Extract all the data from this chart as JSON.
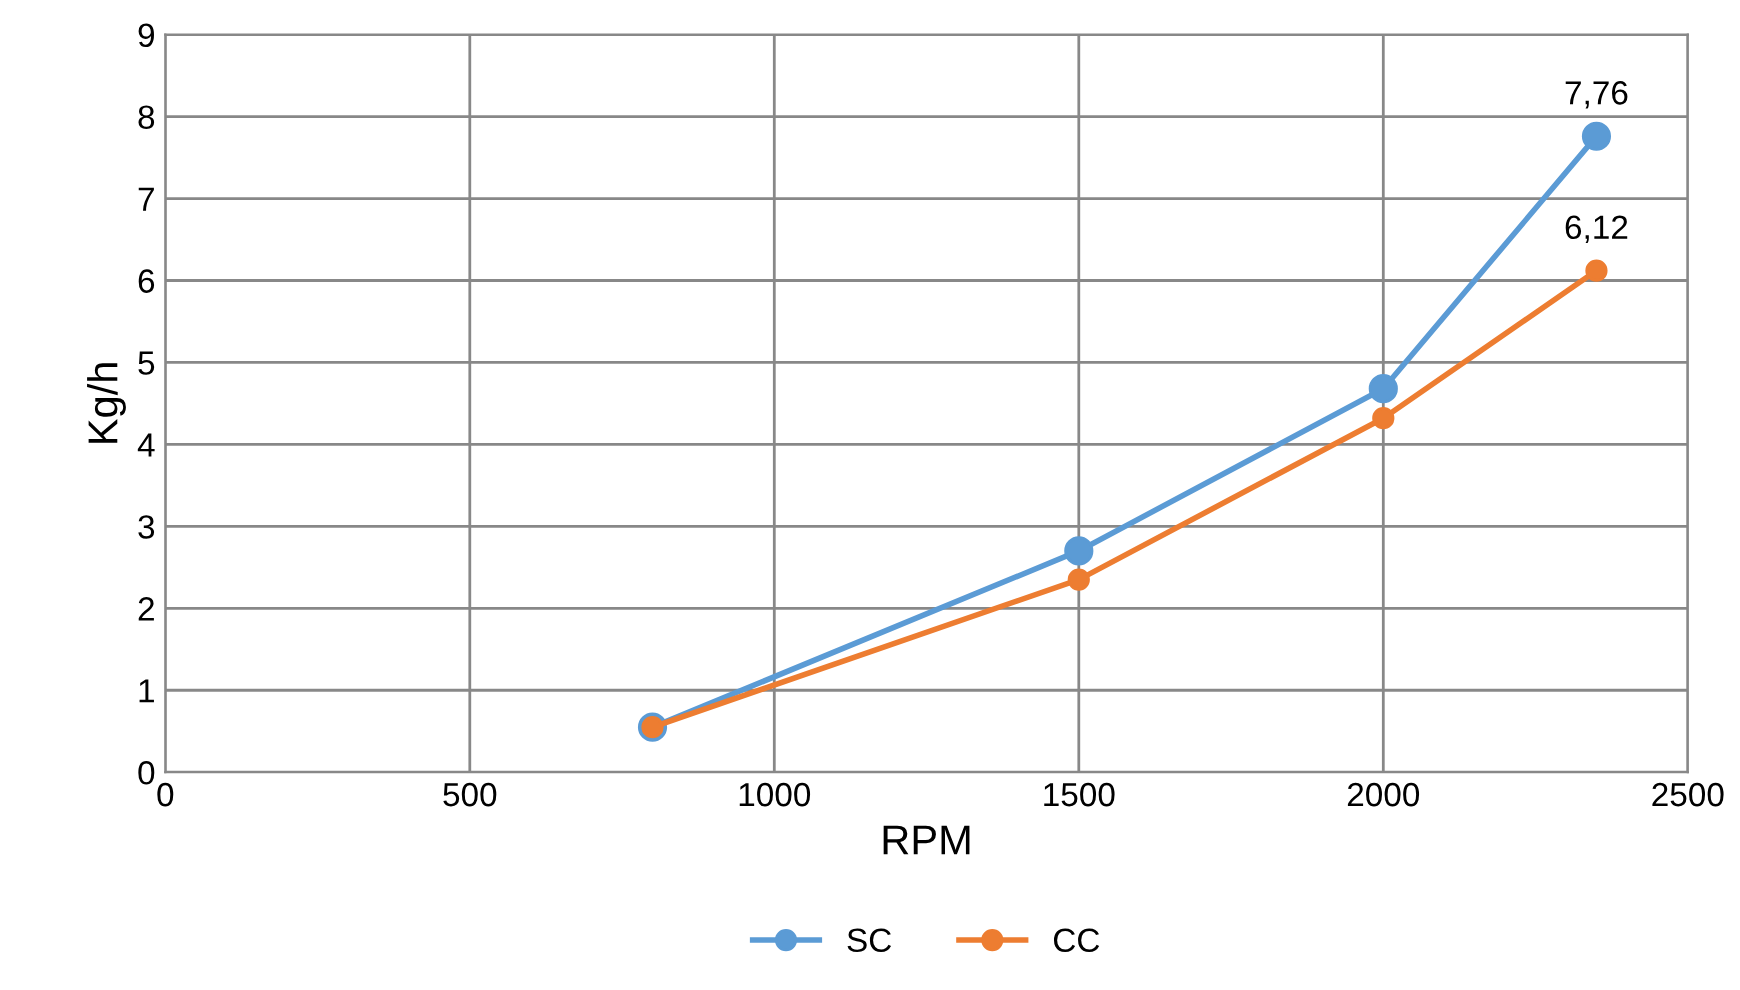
{
  "chart_data": {
    "type": "line",
    "xlabel": "RPM",
    "ylabel": "Kg/h",
    "x": [
      800,
      1500,
      2000,
      2350
    ],
    "series": [
      {
        "name": "SC",
        "color": "#5b9bd5",
        "values": [
          0.55,
          2.7,
          4.68,
          7.76
        ],
        "value_labels": [
          null,
          null,
          null,
          "7,76"
        ]
      },
      {
        "name": "CC",
        "color": "#ed7d31",
        "values": [
          0.55,
          2.35,
          4.32,
          6.12
        ],
        "value_labels": [
          null,
          null,
          null,
          "6,12"
        ]
      }
    ],
    "xlim": [
      0,
      2500
    ],
    "xticks": [
      0,
      500,
      1000,
      1500,
      2000,
      2500
    ],
    "ylim": [
      0,
      9
    ],
    "yticks": [
      0,
      1,
      2,
      3,
      4,
      5,
      6,
      7,
      8,
      9
    ],
    "grid": true,
    "legend": "bottom",
    "marker": "circle",
    "line_style": "solid"
  }
}
